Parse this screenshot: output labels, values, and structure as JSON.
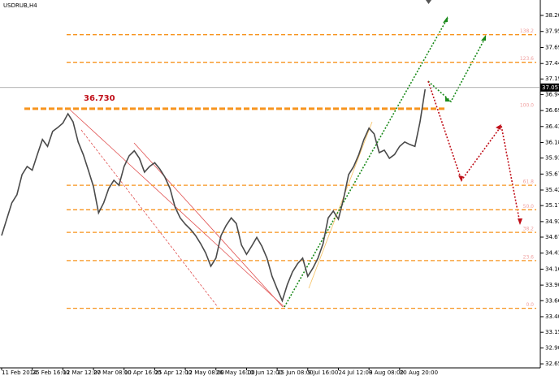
{
  "chart_data": {
    "type": "line",
    "title": "USDRUB,H4",
    "annotation": "36.730",
    "categories": [
      "11 Feb 2014",
      null,
      null,
      null,
      null,
      null,
      "25 Feb 16:00",
      null,
      null,
      null,
      null,
      null,
      "12 Mar 12:00",
      null,
      null,
      null,
      null,
      null,
      "27 Mar 08:00",
      null,
      null,
      null,
      null,
      null,
      "10 Apr 16:00",
      null,
      null,
      null,
      null,
      null,
      "25 Apr 12:00",
      null,
      null,
      null,
      null,
      null,
      "12 May 08:00",
      null,
      null,
      null,
      null,
      null,
      "26 May 16:00",
      null,
      null,
      null,
      null,
      null,
      "10 Jun 12:00",
      null,
      null,
      null,
      null,
      null,
      "25 Jun 08:00",
      null,
      null,
      null,
      null,
      null,
      "9 Jul 16:00",
      null,
      null,
      null,
      null,
      null,
      "24 Jul 12:00",
      null,
      null,
      null,
      null,
      null,
      "8 Aug 08:00",
      null,
      null,
      null,
      null,
      null,
      "20 Aug 20:00",
      null,
      null,
      null,
      null,
      null
    ],
    "series": [
      {
        "name": "USDRUB",
        "color": "#4a4a4a",
        "values": [
          34.7,
          34.96,
          35.22,
          35.35,
          35.67,
          35.8,
          35.74,
          35.99,
          36.23,
          36.12,
          36.36,
          36.42,
          36.49,
          36.64,
          36.51,
          36.19,
          35.99,
          35.74,
          35.48,
          35.06,
          35.22,
          35.45,
          35.58,
          35.5,
          35.8,
          35.97,
          36.05,
          35.93,
          35.71,
          35.8,
          35.86,
          35.76,
          35.63,
          35.45,
          35.15,
          34.98,
          34.88,
          34.8,
          34.7,
          34.57,
          34.42,
          34.21,
          34.34,
          34.7,
          34.86,
          34.98,
          34.89,
          34.55,
          34.4,
          34.53,
          34.67,
          34.53,
          34.34,
          34.05,
          33.85,
          33.66,
          33.92,
          34.12,
          34.25,
          34.34,
          34.05,
          34.18,
          34.34,
          34.57,
          34.98,
          35.09,
          34.96,
          35.28,
          35.67,
          35.8,
          35.99,
          36.23,
          36.41,
          36.32,
          36.02,
          36.06,
          35.93,
          35.99,
          36.12,
          36.19,
          36.15,
          36.12,
          36.51,
          37.03
        ]
      }
    ],
    "last_price": 37.0578,
    "ylim": [
      32.591,
      38.452
    ],
    "yticks": [
      38.2065,
      {
        "value": 37.951,
        "label": "37.9510"
      },
      37.6955,
      {
        "value": 37.44,
        "label": "37.4400"
      },
      {
        "value": 37.194,
        "label": "37.1940"
      },
      {
        "value": 36.946,
        "label": "36.9460"
      },
      {
        "value": 36.691,
        "label": "36.6910"
      },
      36.4365,
      {
        "value": 36.182,
        "label": "36.1820"
      },
      {
        "value": 35.934,
        "label": "35.9340"
      },
      {
        "value": 35.679,
        "label": "35.6790"
      },
      35.4245,
      35.1765,
      34.9215,
      {
        "value": 34.674,
        "label": "34.6740"
      },
      34.4195,
      {
        "value": 34.164,
        "label": "34.1640"
      },
      33.9095,
      33.6615,
      33.4065,
      {
        "value": 33.158,
        "label": "33.1580"
      },
      32.9095,
      {
        "value": 32.655,
        "label": "32.6550"
      }
    ],
    "levels": [
      {
        "value": 37.9,
        "label": "138.2"
      },
      {
        "value": 37.46,
        "label": "123.6"
      },
      {
        "value": 36.72,
        "label": "100.0"
      },
      {
        "value": 35.5,
        "label": "61.8"
      },
      {
        "value": 35.11,
        "label": "50.0"
      },
      {
        "value": 34.75,
        "label": "38.2"
      },
      {
        "value": 34.3,
        "label": "23.6"
      },
      {
        "value": 33.54,
        "label": "0.0"
      }
    ],
    "level_color": "#f7941d",
    "grid": false
  }
}
